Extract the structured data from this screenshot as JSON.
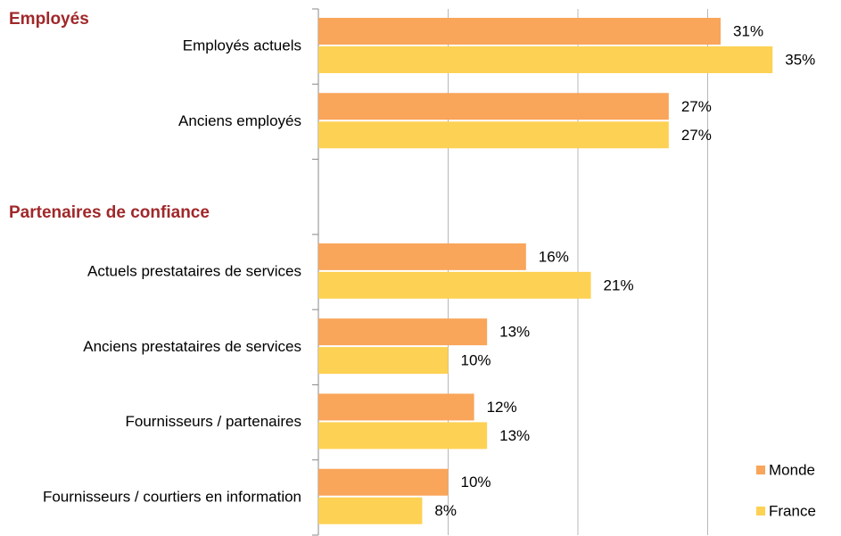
{
  "chart_data": {
    "type": "barh",
    "annotations": [
      {
        "text": "Employés",
        "before_category": 0
      },
      {
        "text": "Partenaires de confiance",
        "before_category": 3
      }
    ],
    "categories": [
      "Employés actuels",
      "Anciens employés",
      null,
      "Actuels prestataires de services",
      "Anciens prestataires de services",
      "Fournisseurs / partenaires",
      "Fournisseurs / courtiers en information"
    ],
    "series": [
      {
        "name": "Monde",
        "color": "#f9a55a",
        "values": [
          31,
          27,
          null,
          16,
          13,
          12,
          10
        ],
        "value_labels": [
          "31%",
          "27%",
          null,
          "16%",
          "13%",
          "12%",
          "10%"
        ]
      },
      {
        "name": "France",
        "color": "#fdd153",
        "values": [
          35,
          27,
          null,
          21,
          10,
          13,
          8
        ],
        "value_labels": [
          "35%",
          "27%",
          null,
          "21%",
          "10%",
          "13%",
          "8%"
        ]
      }
    ],
    "xlim": [
      0,
      40
    ],
    "xticks": [
      10,
      20,
      30
    ],
    "tick_labels": false,
    "grid": true,
    "legend": "lower right"
  }
}
